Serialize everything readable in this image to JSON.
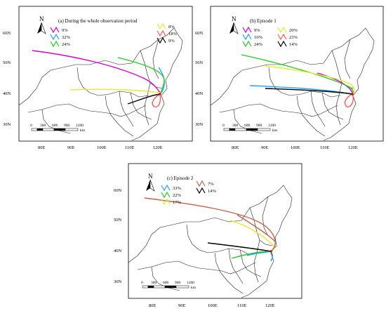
{
  "panels": [
    {
      "id": "a",
      "title": "(a) During the whole observation period",
      "lat_labels": [
        "60N",
        "50N",
        "40N",
        "30N"
      ],
      "lon_labels": [
        "80E",
        "90E",
        "100E",
        "110E",
        "120E"
      ],
      "scale_ticks": [
        "0",
        "300",
        "600",
        "900",
        "1200"
      ],
      "scale_unit": "km",
      "north": "N",
      "legend": [
        {
          "label": "9%",
          "color": "#d400d4"
        },
        {
          "label": "32%",
          "color": "#1fa3ff"
        },
        {
          "label": "24%",
          "color": "#22cc22"
        },
        {
          "label": "8%",
          "color": "#e8e832"
        },
        {
          "label": "18%",
          "color": "#ff5a5a"
        },
        {
          "label": "9%",
          "color": "#000000"
        }
      ]
    },
    {
      "id": "b",
      "title": "(b) Episode 1",
      "lat_labels": [
        "60N",
        "50N",
        "40N",
        "30N"
      ],
      "lon_labels": [
        "80E",
        "90E",
        "100E",
        "110E",
        "120E"
      ],
      "scale_ticks": [
        "0",
        "300",
        "600",
        "900",
        "1200"
      ],
      "scale_unit": "km",
      "north": "N",
      "legend": [
        {
          "label": "9%",
          "color": "#d400d4"
        },
        {
          "label": "10%",
          "color": "#1fa3ff"
        },
        {
          "label": "24%",
          "color": "#22cc22"
        },
        {
          "label": "20%",
          "color": "#e8e832"
        },
        {
          "label": "23%",
          "color": "#ff5a5a"
        },
        {
          "label": "14%",
          "color": "#000000"
        }
      ]
    },
    {
      "id": "c",
      "title": "(c) Episode 2",
      "lat_labels": [
        "60N",
        "50N",
        "40N",
        "30N"
      ],
      "lon_labels": [
        "80E",
        "90E",
        "100E",
        "110E",
        "120E"
      ],
      "scale_ticks": [
        "0",
        "300",
        "600",
        "900",
        "1200"
      ],
      "scale_unit": "km",
      "north": "N",
      "legend": [
        {
          "label": "33%",
          "color": "#1fa3ff"
        },
        {
          "label": "22%",
          "color": "#22cc22"
        },
        {
          "label": "17%",
          "color": "#e8e832"
        },
        {
          "label": "7%",
          "color": "#c0644a"
        },
        {
          "label": "14%",
          "color": "#000000"
        }
      ]
    }
  ]
}
